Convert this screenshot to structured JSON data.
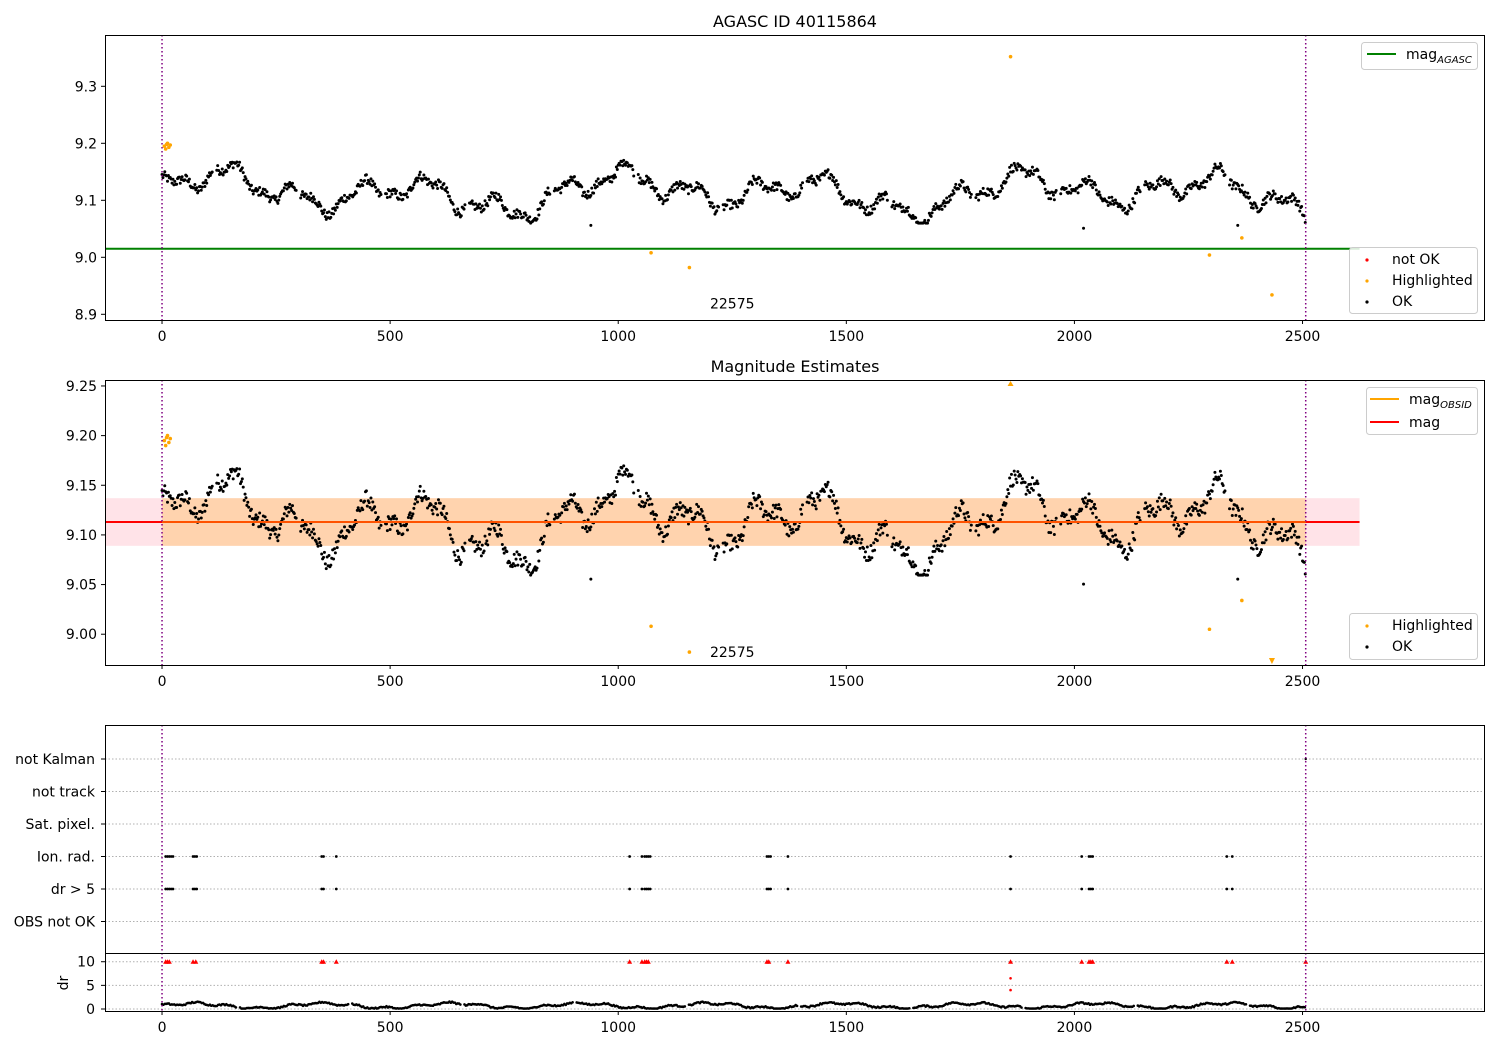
{
  "colors": {
    "ok": "#000000",
    "highlighted": "#ffa500",
    "not_ok": "#ff0000",
    "agasc_line": "#008000",
    "mag_line": "#ff0000",
    "mag_obsid": "#ffa500",
    "band": "#ffc0cb",
    "vline": "#800080",
    "grid": "#b0b0b0"
  },
  "chart_data": [
    {
      "id": "agasc",
      "type": "scatter",
      "title": "AGASC ID 40115864",
      "xlim": [
        -125,
        2900
      ],
      "ylim": [
        8.89,
        9.39
      ],
      "xticks": [
        0,
        500,
        1000,
        1500,
        2000,
        2500
      ],
      "xtick_labels": [
        "0",
        "500",
        "1000",
        "1500",
        "2000",
        "2500"
      ],
      "yticks": [
        8.9,
        9.0,
        9.1,
        9.2,
        9.3
      ],
      "ytick_labels": [
        "8.9",
        "9.0",
        "9.1",
        "9.2",
        "9.3"
      ],
      "vlines": [
        0,
        2507
      ],
      "hline": {
        "y": 9.015,
        "x_end": 2625,
        "label_main": "mag",
        "label_sub": "AGASC"
      },
      "annotation": {
        "text": "22575",
        "x": 1250,
        "y": 8.91
      },
      "ok_series": {
        "name": "OK",
        "n": 2507,
        "ymin": 9.05,
        "ymax": 9.175
      },
      "highlighted": [
        {
          "x": 5,
          "y": 9.195
        },
        {
          "x": 8,
          "y": 9.19
        },
        {
          "x": 10,
          "y": 9.198
        },
        {
          "x": 12,
          "y": 9.2
        },
        {
          "x": 15,
          "y": 9.193
        },
        {
          "x": 18,
          "y": 9.197
        },
        {
          "x": 1072,
          "y": 9.008
        },
        {
          "x": 1156,
          "y": 8.982
        },
        {
          "x": 1860,
          "y": 9.352
        },
        {
          "x": 2296,
          "y": 9.004
        },
        {
          "x": 2367,
          "y": 9.034
        },
        {
          "x": 2433,
          "y": 8.934
        }
      ],
      "legend_top": [
        "mag_AGASC"
      ],
      "legend_bottom": [
        "not OK",
        "Highlighted",
        "OK"
      ]
    },
    {
      "id": "estimates",
      "type": "scatter",
      "title": "Magnitude Estimates",
      "xlim": [
        -125,
        2900
      ],
      "ylim": [
        8.969,
        9.256
      ],
      "xticks": [
        0,
        500,
        1000,
        1500,
        2000,
        2500
      ],
      "xtick_labels": [
        "0",
        "500",
        "1000",
        "1500",
        "2000",
        "2500"
      ],
      "yticks": [
        9.0,
        9.05,
        9.1,
        9.15,
        9.2,
        9.25
      ],
      "ytick_labels": [
        "9.00",
        "9.05",
        "9.10",
        "9.15",
        "9.20",
        "9.25"
      ],
      "vlines": [
        0,
        2507
      ],
      "mag": 9.113,
      "band": [
        9.089,
        9.137
      ],
      "band_x_end": 2625,
      "annotation": {
        "text": "22575",
        "x": 1250,
        "y": 8.982
      },
      "highlighted": [
        {
          "x": 5,
          "y": 9.195
        },
        {
          "x": 8,
          "y": 9.19
        },
        {
          "x": 10,
          "y": 9.198
        },
        {
          "x": 12,
          "y": 9.2
        },
        {
          "x": 15,
          "y": 9.193
        },
        {
          "x": 18,
          "y": 9.197
        },
        {
          "x": 1072,
          "y": 9.008
        },
        {
          "x": 1156,
          "y": 8.982
        },
        {
          "x": 2296,
          "y": 9.005
        },
        {
          "x": 2367,
          "y": 9.034
        }
      ],
      "clipped_markers": [
        {
          "x": 1860,
          "edge": "top"
        },
        {
          "x": 2433,
          "edge": "bottom"
        }
      ],
      "legend_top": [
        "mag_OBSID",
        "mag"
      ],
      "legend_bottom": [
        "Highlighted",
        "OK"
      ]
    },
    {
      "id": "flags",
      "type": "scatter",
      "xlim": [
        -125,
        2900
      ],
      "xticks": [
        0,
        500,
        1000,
        1500,
        2000,
        2500
      ],
      "xtick_labels": [
        "0",
        "500",
        "1000",
        "1500",
        "2000",
        "2500"
      ],
      "vlines": [
        0,
        2507
      ],
      "flag_labels": [
        "not Kalman",
        "not track",
        "Sat. pixel.",
        "Ion. rad.",
        "dr > 5",
        "OBS not OK"
      ],
      "flag_events_x": [
        8,
        12,
        16,
        20,
        24,
        68,
        72,
        76,
        350,
        354,
        382,
        1025,
        1052,
        1058,
        1062,
        1066,
        1070,
        1326,
        1330,
        1334,
        1372,
        1860,
        2016,
        2032,
        2036,
        2040,
        2334,
        2346
      ],
      "dr": {
        "ylabel": "dr",
        "ylim": [
          0,
          11
        ],
        "yticks": [
          0,
          5,
          10
        ],
        "ytick_labels": [
          "0",
          "5",
          "10"
        ],
        "high_x": [
          8,
          12,
          16,
          68,
          74,
          350,
          354,
          382,
          1025,
          1052,
          1058,
          1062,
          1066,
          1326,
          1330,
          1372,
          1860,
          2016,
          2032,
          2036,
          2040,
          2334,
          2346,
          2507
        ],
        "outliers": [
          {
            "x": 1860,
            "y": 6.5
          },
          {
            "x": 1860,
            "y": 4.0
          }
        ]
      }
    }
  ],
  "legend_text": {
    "mag": "mag",
    "agasc_sub": "AGASC",
    "obsid_sub": "OBSID",
    "not_ok": "not OK",
    "highlighted": "Highlighted",
    "ok": "OK"
  }
}
